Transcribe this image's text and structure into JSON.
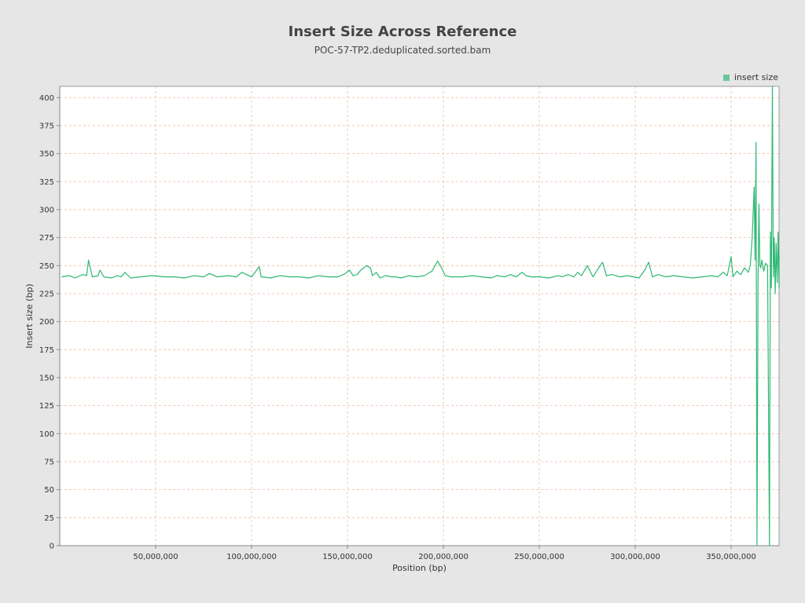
{
  "chart_data": {
    "type": "line",
    "title": "Insert Size Across Reference",
    "subtitle": "POC-57-TP2.deduplicated.sorted.bam",
    "xlabel": "Position (bp)",
    "ylabel": "Insert size (bp)",
    "xlim": [
      0,
      375000000
    ],
    "ylim": [
      0,
      410
    ],
    "x_ticks": [
      50000000,
      100000000,
      150000000,
      200000000,
      250000000,
      300000000,
      350000000
    ],
    "x_tick_labels": [
      "50,000,000",
      "100,000,000",
      "150,000,000",
      "200,000,000",
      "250,000,000",
      "300,000,000",
      "350,000,000"
    ],
    "y_ticks": [
      0,
      25,
      50,
      75,
      100,
      125,
      150,
      175,
      200,
      225,
      250,
      275,
      300,
      325,
      350,
      375,
      400
    ],
    "y_tick_labels": [
      "0",
      "25",
      "50",
      "75",
      "100",
      "125",
      "150",
      "175",
      "200",
      "225",
      "250",
      "275",
      "300",
      "325",
      "350",
      "375",
      "400"
    ],
    "grid": true,
    "legend": "top-right",
    "colors": {
      "series": "#2db873",
      "grid": "#f0b9a0",
      "plot_bg": "#ffffff",
      "page_bg": "#e6e6e6"
    },
    "series": [
      {
        "name": "insert size",
        "x": [
          1000000,
          5000000,
          8000000,
          12000000,
          14000000,
          15000000,
          17000000,
          20000000,
          21000000,
          23000000,
          27000000,
          30000000,
          32000000,
          34000000,
          37000000,
          42000000,
          48000000,
          55000000,
          60000000,
          65000000,
          70000000,
          75000000,
          78000000,
          82000000,
          88000000,
          92000000,
          95000000,
          100000000,
          104000000,
          105000000,
          110000000,
          115000000,
          120000000,
          125000000,
          130000000,
          135000000,
          140000000,
          145000000,
          149000000,
          151000000,
          153000000,
          155000000,
          157000000,
          160000000,
          162000000,
          163000000,
          165000000,
          167000000,
          170000000,
          173000000,
          175000000,
          178000000,
          182000000,
          186000000,
          190000000,
          194000000,
          197000000,
          199000000,
          201000000,
          204000000,
          210000000,
          215000000,
          220000000,
          225000000,
          228000000,
          232000000,
          235000000,
          238000000,
          241000000,
          243000000,
          246000000,
          250000000,
          255000000,
          260000000,
          262000000,
          265000000,
          268000000,
          270000000,
          272000000,
          275000000,
          278000000,
          281000000,
          283000000,
          285000000,
          288000000,
          292000000,
          296000000,
          299000000,
          302000000,
          305000000,
          307000000,
          309000000,
          312000000,
          316000000,
          320000000,
          325000000,
          330000000,
          335000000,
          340000000,
          343000000,
          346000000,
          348000000,
          350000000,
          351000000,
          353000000,
          355000000,
          357000000,
          359000000,
          360000000,
          361000000,
          362000000,
          362500000,
          363000000,
          363500000,
          364000000,
          364500000,
          365000000,
          365500000,
          366000000,
          367000000,
          368000000,
          369000000,
          370000000,
          370500000,
          371000000,
          371500000,
          372000000,
          372500000,
          373000000,
          373500000,
          374000000,
          374500000,
          375000000,
          375500000,
          376000000
        ],
        "values": [
          240,
          241,
          239,
          242,
          241,
          255,
          240,
          241,
          246,
          240,
          239,
          241,
          240,
          244,
          239,
          240,
          241,
          240,
          240,
          239,
          241,
          240,
          243,
          240,
          241,
          240,
          244,
          240,
          249,
          240,
          239,
          241,
          240,
          240,
          239,
          241,
          240,
          240,
          243,
          246,
          241,
          242,
          246,
          250,
          248,
          241,
          244,
          239,
          241,
          240,
          240,
          239,
          241,
          240,
          241,
          245,
          254,
          248,
          241,
          240,
          240,
          241,
          240,
          239,
          241,
          240,
          242,
          240,
          244,
          241,
          240,
          240,
          239,
          241,
          240,
          242,
          240,
          244,
          241,
          250,
          240,
          248,
          253,
          241,
          242,
          240,
          241,
          240,
          239,
          246,
          253,
          240,
          242,
          240,
          241,
          240,
          239,
          240,
          241,
          240,
          244,
          241,
          258,
          240,
          245,
          242,
          248,
          244,
          250,
          275,
          320,
          255,
          360,
          0,
          230,
          305,
          250,
          248,
          255,
          245,
          252,
          250,
          0,
          280,
          230,
          410,
          240,
          275,
          225,
          270,
          235,
          280,
          230,
          260,
          240
        ]
      }
    ]
  }
}
